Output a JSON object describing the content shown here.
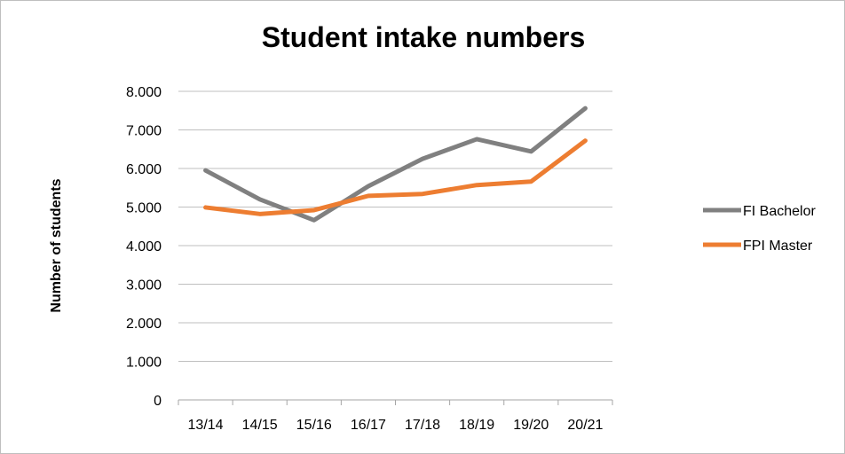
{
  "chart_data": {
    "type": "line",
    "title": "Student intake numbers",
    "xlabel": "",
    "ylabel": "Number of students",
    "categories": [
      "13/14",
      "14/15",
      "15/16",
      "16/17",
      "17/18",
      "18/19",
      "19/20",
      "20/21"
    ],
    "ylim": [
      0,
      8000
    ],
    "yticks": [
      0,
      1000,
      2000,
      3000,
      4000,
      5000,
      6000,
      7000,
      8000
    ],
    "ytick_labels": [
      "0",
      "1.000",
      "2.000",
      "3.000",
      "4.000",
      "5.000",
      "6.000",
      "7.000",
      "8.000"
    ],
    "grid": true,
    "legend_position": "right",
    "series": [
      {
        "name": "FI Bachelor",
        "color": "#808080",
        "values": [
          5950,
          5200,
          4660,
          5540,
          6250,
          6760,
          6440,
          7560
        ]
      },
      {
        "name": "FPI Master",
        "color": "#ed7d31",
        "values": [
          4990,
          4820,
          4920,
          5290,
          5340,
          5570,
          5660,
          6720
        ]
      }
    ]
  }
}
